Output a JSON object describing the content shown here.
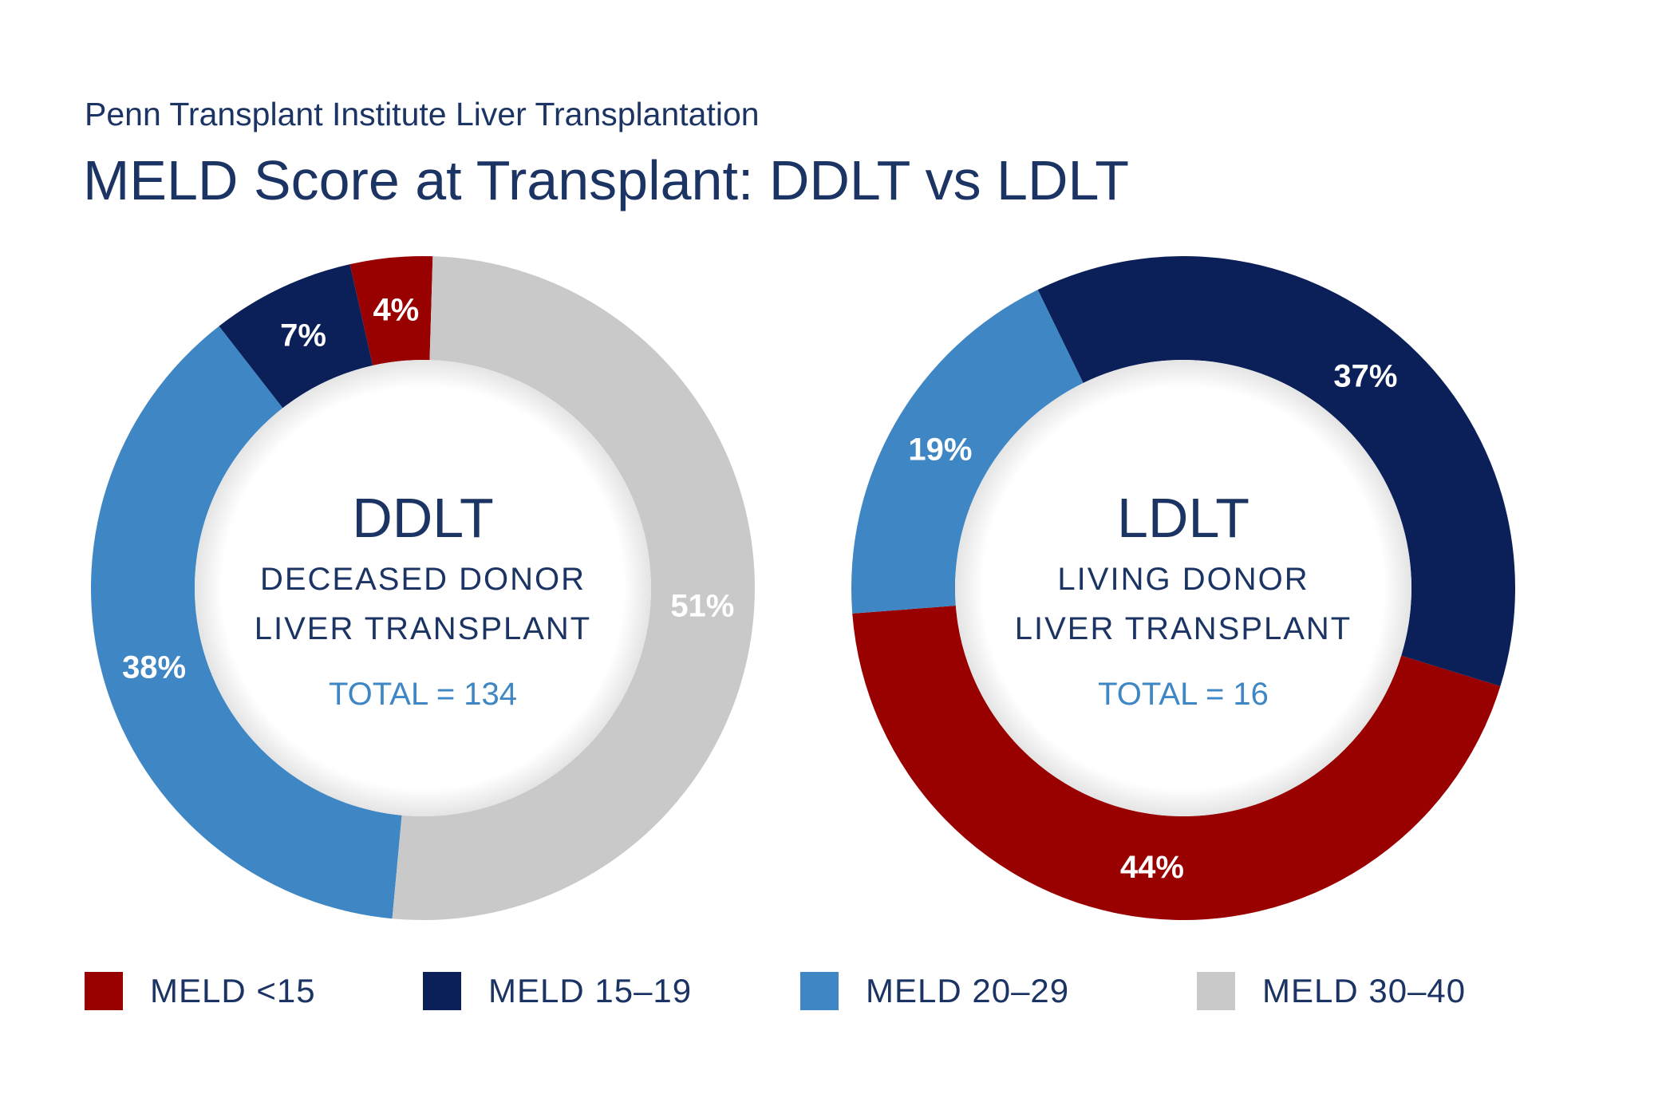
{
  "header": {
    "subtitle": "Penn Transplant Institute Liver Transplantation",
    "title": "MELD Score at Transplant: DDLT vs LDLT"
  },
  "colors": {
    "meld_lt15": "#990000",
    "meld_15_19": "#0b2058",
    "meld_20_29": "#3e86c4",
    "meld_30_40": "#c8c9c8",
    "text": "#1c3464",
    "total": "#3e86c4"
  },
  "legend": [
    {
      "label": "MELD <15",
      "color": "#990000"
    },
    {
      "label": "MELD 15–19",
      "color": "#0b2058"
    },
    {
      "label": "MELD 20–29",
      "color": "#3e86c4"
    },
    {
      "label": "MELD 30–40",
      "color": "#c8c9c8"
    }
  ],
  "chart_data": [
    {
      "type": "pie",
      "variant": "donut",
      "center_title": "DDLT",
      "center_line1": "DECEASED DONOR",
      "center_line2": "LIVER TRANSPLANT",
      "center_total": "TOTAL = 134",
      "categories": [
        "MELD <15",
        "MELD 15–19",
        "MELD 20–29",
        "MELD 30–40"
      ],
      "values": [
        4,
        7,
        38,
        51
      ],
      "labels": [
        "4%",
        "7%",
        "38%",
        "51%"
      ],
      "colors": [
        "#990000",
        "#0b2058",
        "#3e86c4",
        "#c8c9c8"
      ]
    },
    {
      "type": "pie",
      "variant": "donut",
      "center_title": "LDLT",
      "center_line1": "LIVING DONOR",
      "center_line2": "LIVER TRANSPLANT",
      "center_total": "TOTAL = 16",
      "categories": [
        "MELD <15",
        "MELD 15–19",
        "MELD 20–29"
      ],
      "values": [
        44,
        37,
        19
      ],
      "labels": [
        "44%",
        "37%",
        "19%"
      ],
      "colors": [
        "#990000",
        "#0b2058",
        "#3e86c4"
      ]
    }
  ]
}
